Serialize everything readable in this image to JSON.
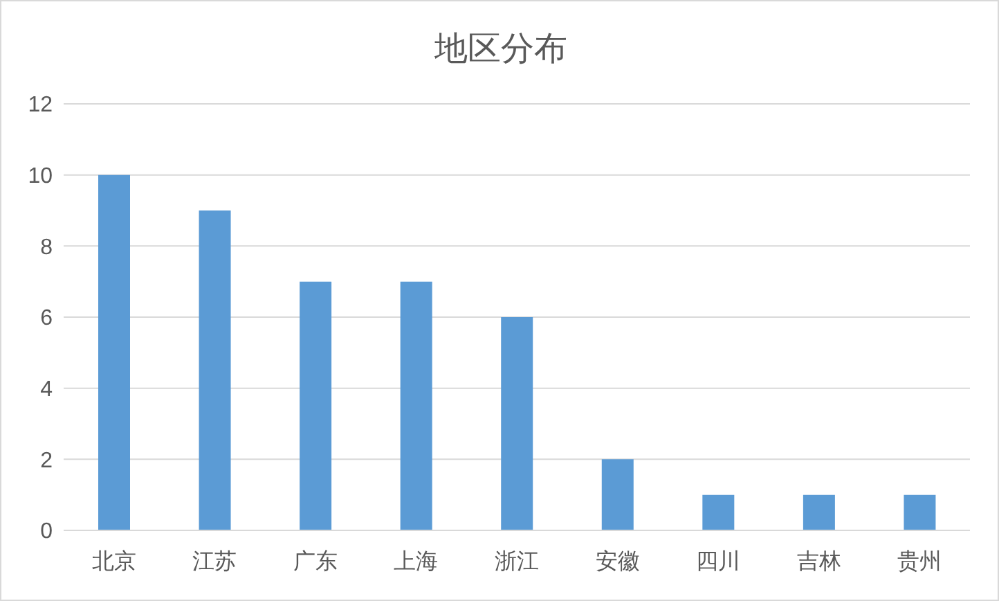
{
  "chart_data": {
    "type": "bar",
    "title": "地区分布",
    "categories": [
      "北京",
      "江苏",
      "广东",
      "上海",
      "浙江",
      "安徽",
      "四川",
      "吉林",
      "贵州"
    ],
    "values": [
      10,
      9,
      7,
      7,
      6,
      2,
      1,
      1,
      1
    ],
    "color": "#5b9bd5",
    "ylim": [
      0,
      12
    ],
    "yticks": [
      0,
      2,
      4,
      6,
      8,
      10,
      12
    ],
    "grid": "y"
  }
}
